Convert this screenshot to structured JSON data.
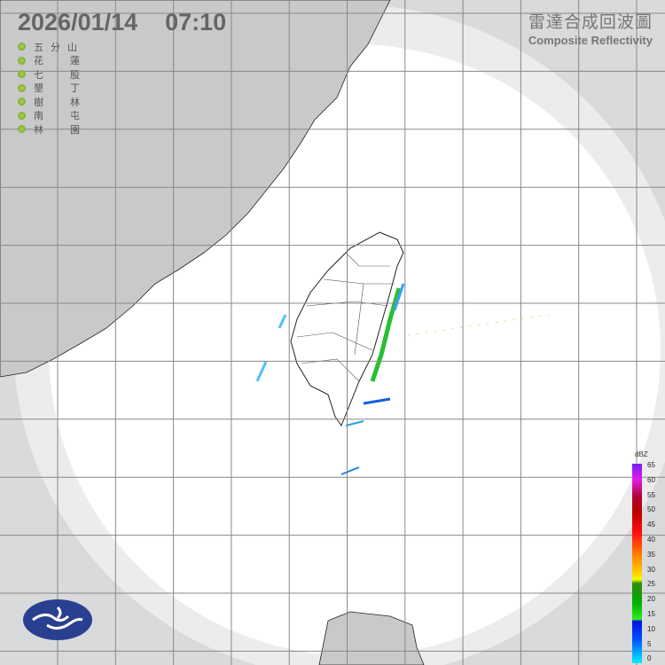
{
  "header": {
    "timestamp": "2026/01/14  07:10"
  },
  "stations": [
    {
      "name": "五分山",
      "a": "五 分",
      "b": "山"
    },
    {
      "name": "花蓮",
      "a": "花",
      "b": "蓮"
    },
    {
      "name": "七股",
      "a": "七",
      "b": "股"
    },
    {
      "name": "墾丁",
      "a": "墾",
      "b": "丁"
    },
    {
      "name": "樹林",
      "a": "樹",
      "b": "林"
    },
    {
      "name": "南屯",
      "a": "南",
      "b": "屯"
    },
    {
      "name": "林園",
      "a": "林",
      "b": "園"
    }
  ],
  "title": {
    "zh": "雷達合成回波圖",
    "en": "Composite Reflectivity"
  },
  "colorbar": {
    "unit": "dBZ",
    "ticks": [
      "65",
      "60",
      "55",
      "50",
      "45",
      "40",
      "35",
      "30",
      "25",
      "20",
      "15",
      "10",
      "5",
      "0"
    ]
  },
  "colors": {
    "land": "#c8c9cb",
    "ocean_coverage": "#ffffff",
    "out_of_range": "#d9dadc",
    "grid": "#888888",
    "station_dot": "#9fc64a",
    "logo": "#2a3f8f"
  }
}
